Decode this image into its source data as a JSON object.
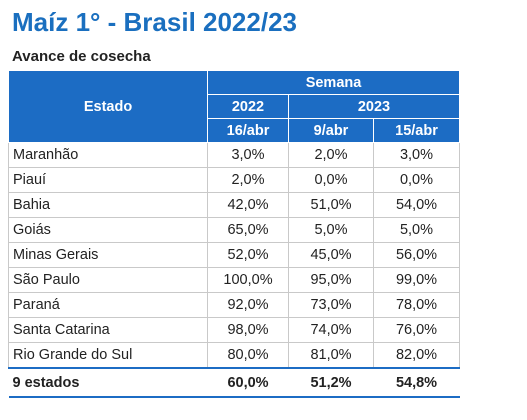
{
  "title": "Maíz 1° - Brasil 2022/23",
  "subtitle": "Avance de cosecha",
  "table": {
    "estado_header": "Estado",
    "semana_header": "Semana",
    "year_2022": "2022",
    "year_2023": "2023",
    "dates": [
      "16/abr",
      "9/abr",
      "15/abr"
    ],
    "rows": [
      {
        "estado": "Maranhão",
        "values": [
          "3,0%",
          "2,0%",
          "3,0%"
        ]
      },
      {
        "estado": "Piauí",
        "values": [
          "2,0%",
          "0,0%",
          "0,0%"
        ]
      },
      {
        "estado": "Bahia",
        "values": [
          "42,0%",
          "51,0%",
          "54,0%"
        ]
      },
      {
        "estado": "Goiás",
        "values": [
          "65,0%",
          "5,0%",
          "5,0%"
        ]
      },
      {
        "estado": "Minas Gerais",
        "values": [
          "52,0%",
          "45,0%",
          "56,0%"
        ]
      },
      {
        "estado": "São Paulo",
        "values": [
          "100,0%",
          "95,0%",
          "99,0%"
        ]
      },
      {
        "estado": "Paraná",
        "values": [
          "92,0%",
          "73,0%",
          "78,0%"
        ]
      },
      {
        "estado": "Santa Catarina",
        "values": [
          "98,0%",
          "74,0%",
          "76,0%"
        ]
      },
      {
        "estado": "Rio Grande do Sul",
        "values": [
          "80,0%",
          "81,0%",
          "82,0%"
        ]
      }
    ],
    "total": {
      "estado": "9 estados",
      "values": [
        "60,0%",
        "51,2%",
        "54,8%"
      ]
    }
  },
  "colors": {
    "title": "#1a6fbf",
    "header_bg": "#1c6cc4"
  }
}
